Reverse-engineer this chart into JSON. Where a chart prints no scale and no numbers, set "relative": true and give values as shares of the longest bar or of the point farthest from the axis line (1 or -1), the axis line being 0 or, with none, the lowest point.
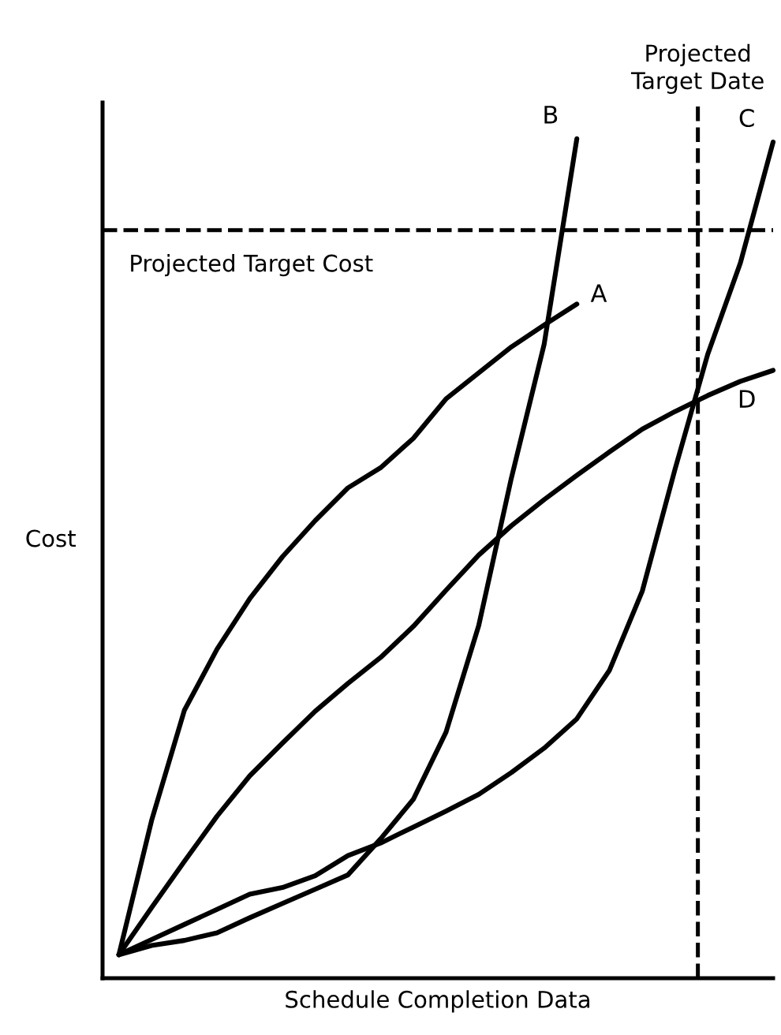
{
  "chart_data": {
    "type": "line",
    "relative": true,
    "xlabel": "Schedule Completion Data",
    "ylabel": "Cost",
    "categories": [
      null,
      null,
      null,
      null,
      null,
      null,
      null,
      null,
      null,
      null,
      null,
      null,
      null,
      null,
      null,
      null,
      null,
      null,
      null,
      null,
      null
    ],
    "series": [
      {
        "name": "A",
        "color": "#000000",
        "values": [
          0.028,
          0.188,
          0.319,
          0.392,
          0.452,
          0.502,
          0.545,
          0.584,
          0.608,
          0.643,
          0.69,
          0.721,
          0.752,
          0.778,
          0.803,
          null,
          null,
          null,
          null,
          null,
          null
        ]
      },
      {
        "name": "B",
        "color": "#000000",
        "values": [
          0.028,
          0.039,
          0.045,
          0.054,
          0.072,
          0.089,
          0.106,
          0.123,
          0.166,
          0.213,
          0.293,
          0.42,
          0.596,
          0.755,
          1,
          null,
          null,
          null,
          null,
          null,
          null
        ]
      },
      {
        "name": "C",
        "color": "#000000",
        "values": [
          0.028,
          0.046,
          0.064,
          0.082,
          0.1,
          0.108,
          0.122,
          0.146,
          0.161,
          0.18,
          0.199,
          0.219,
          0.245,
          0.274,
          0.309,
          0.367,
          0.461,
          0.606,
          0.743,
          0.852,
          0.996
        ]
      },
      {
        "name": "D",
        "color": "#000000",
        "values": [
          0.028,
          0.084,
          0.139,
          0.193,
          0.241,
          0.28,
          0.318,
          0.351,
          0.382,
          0.419,
          0.462,
          0.504,
          0.539,
          0.57,
          0.599,
          0.627,
          0.654,
          0.675,
          0.694,
          0.711,
          0.724
        ]
      }
    ],
    "ref_lines": [
      {
        "axis": "y",
        "value": 0.891,
        "label": "Projected Target Cost",
        "line_style": "dashed",
        "color": "#000000"
      }
    ],
    "annotations": [
      "Projected Target Date"
    ],
    "legend": false,
    "marker": "none",
    "line_style": "solid"
  }
}
